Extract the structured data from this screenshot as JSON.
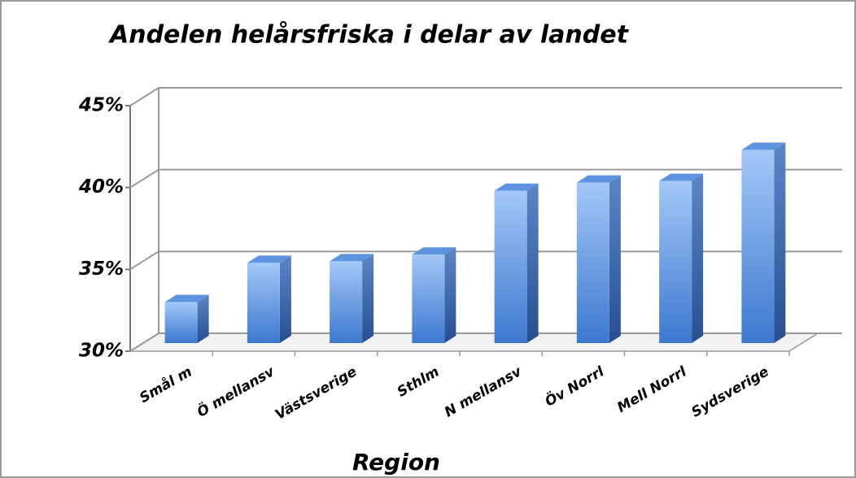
{
  "chart_data": {
    "type": "bar3d",
    "title": "Andelen helårsfriska i delar av landet",
    "x_label": "Region",
    "categories": [
      "Smål m",
      "Ö mellansv",
      "Västsverige",
      "Sthlm",
      "N mellansv",
      "Öv Norrl",
      "Mell Norrl",
      "Sydsverige"
    ],
    "values": [
      32.6,
      35.0,
      35.1,
      35.5,
      39.4,
      39.9,
      40.0,
      41.9
    ],
    "color": "#4a86d8",
    "ylim": [
      30,
      45
    ],
    "yticks": [
      {
        "value": 30,
        "label": "30%"
      },
      {
        "value": 35,
        "label": "35%"
      },
      {
        "value": 40,
        "label": "40%"
      },
      {
        "value": 45,
        "label": "45%"
      }
    ],
    "grid": true
  }
}
